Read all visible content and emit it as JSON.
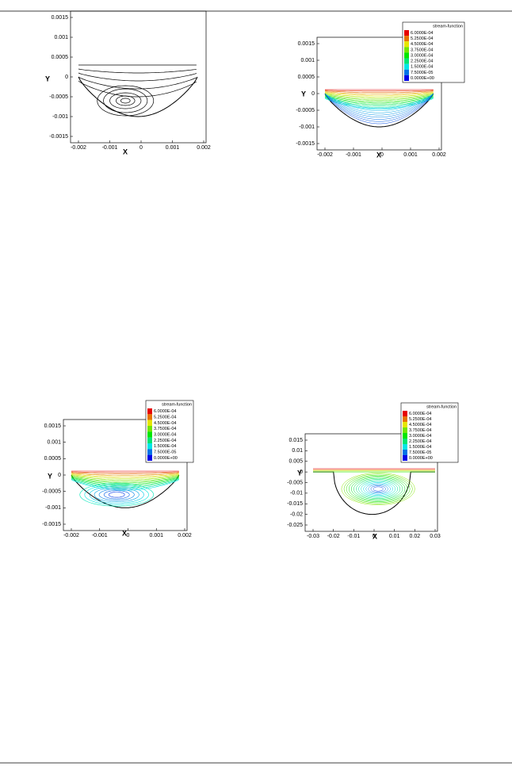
{
  "figures": [
    {
      "x_label": "X",
      "y_label": "Y",
      "x_ticks": [
        "-0.002",
        "-0.001",
        "0",
        "0.001",
        "0.002"
      ],
      "y_ticks": [
        "0.0015",
        "0.001",
        "0.0005",
        "0",
        "-0.0005",
        "-0.001",
        "-0.0015"
      ]
    },
    {
      "x_label": "X",
      "y_label": "Y",
      "x_ticks": [
        "-0.002",
        "-0.001",
        "0",
        "0.001",
        "0.002"
      ],
      "y_ticks": [
        "0.0015",
        "0.001",
        "0.0005",
        "0",
        "-0.0005",
        "-0.001",
        "-0.0015"
      ],
      "legend": {
        "title": "stream-function",
        "labels": [
          "6.0000E-04",
          "5.2500E-04",
          "4.5000E-04",
          "3.7500E-04",
          "3.0000E-04",
          "2.2500E-04",
          "1.5000E-04",
          "7.5000E-05",
          "0.0000E+00"
        ]
      }
    },
    {
      "x_label": "X",
      "y_label": "Y",
      "x_ticks": [
        "-0.002",
        "-0.001",
        "0",
        "0.001",
        "0.002"
      ],
      "y_ticks": [
        "0.0015",
        "0.001",
        "0.0005",
        "0",
        "-0.0005",
        "-0.001",
        "-0.0015"
      ],
      "legend": {
        "title": "stream-function",
        "labels": [
          "6.0000E-04",
          "5.2500E-04",
          "4.5000E-04",
          "3.7500E-04",
          "3.0000E-04",
          "2.2500E-04",
          "1.5000E-04",
          "7.5000E-05",
          "0.0000E+00"
        ]
      }
    },
    {
      "x_label": "X",
      "y_label": "Y",
      "x_ticks": [
        "-0.03",
        "-0.02",
        "-0.01",
        "0",
        "0.01",
        "0.02",
        "0.03"
      ],
      "y_ticks": [
        "0.015",
        "0.01",
        "0.005",
        "0",
        "-0.005",
        "-0.01",
        "-0.015",
        "-0.02",
        "-0.025"
      ],
      "legend": {
        "title": "stream-function",
        "labels": [
          "6.0000E-04",
          "5.2500E-04",
          "4.5000E-04",
          "3.7500E-04",
          "3.0000E-04",
          "2.2500E-04",
          "1.5000E-04",
          "7.5000E-05",
          "0.0000E+00"
        ]
      }
    }
  ]
}
